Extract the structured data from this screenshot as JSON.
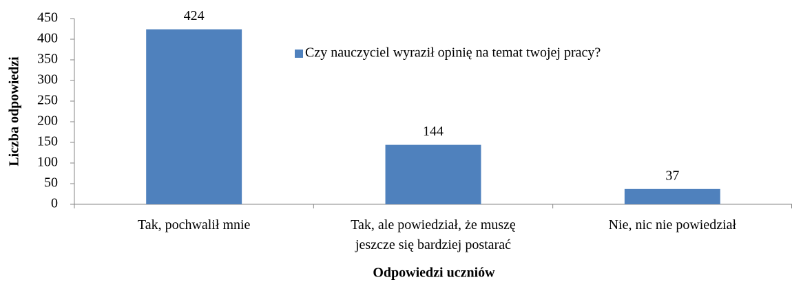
{
  "chart_data": {
    "type": "bar",
    "xlabel": "Odpowiedzi uczniów",
    "ylabel": "Liczba odpowiedzi",
    "categories": [
      "Tak, pochwalił mnie",
      "Tak, ale powiedział, że muszę\njeszcze się bardziej postarać",
      "Nie, nic nie powiedział"
    ],
    "series": [
      {
        "name": "Czy nauczyciel wyraził opinię na temat twojej pracy?",
        "color": "#4f81bd",
        "values": [
          424,
          144,
          37
        ]
      }
    ],
    "ylim": [
      0,
      450
    ],
    "yticks": [
      0,
      50,
      100,
      150,
      200,
      250,
      300,
      350,
      400,
      450
    ],
    "grid": false,
    "legend": "top"
  }
}
